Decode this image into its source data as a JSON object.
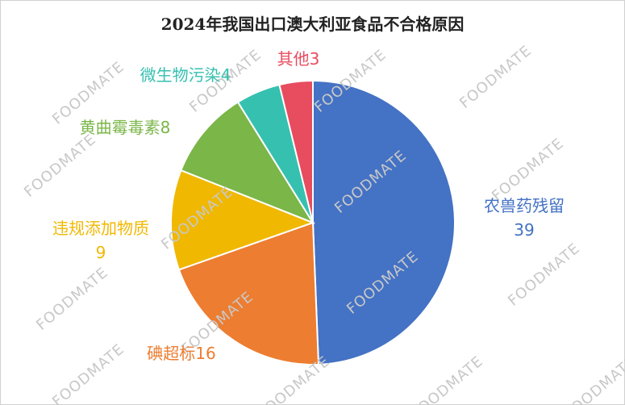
{
  "chart_data": {
    "type": "pie",
    "title": "2024年我国出口澳大利亚食品不合格原因",
    "categories": [
      "农兽药残留",
      "碘超标",
      "违规添加物质",
      "黄曲霉毒素",
      "微生物污染",
      "其他"
    ],
    "values": [
      39,
      16,
      9,
      8,
      4,
      3
    ],
    "colors": [
      "#4472c4",
      "#ed7d31",
      "#f0b800",
      "#7ab648",
      "#36c0b0",
      "#e84c5f"
    ],
    "watermark": "FOODMATE"
  }
}
